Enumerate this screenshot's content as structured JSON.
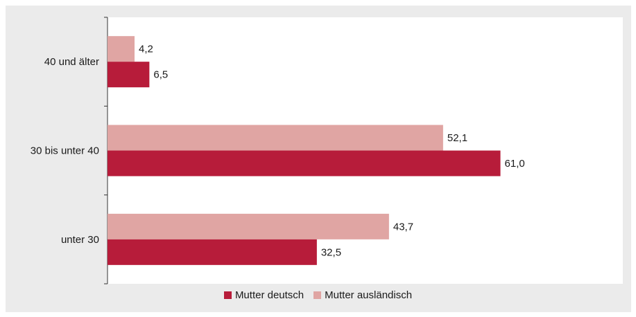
{
  "chart_data": {
    "type": "bar",
    "orientation": "horizontal",
    "categories": [
      "40 und älter",
      "30 bis unter 40",
      "unter 30"
    ],
    "series": [
      {
        "name": "Mutter ausländisch",
        "values": [
          4.2,
          52.1,
          43.7
        ],
        "color": "#e0a5a3"
      },
      {
        "name": "Mutter deutsch",
        "values": [
          6.5,
          61.0,
          32.5
        ],
        "color": "#b71c3a"
      }
    ],
    "value_labels": {
      "Mutter ausländisch": [
        "4,2",
        "52,1",
        "43,7"
      ],
      "Mutter deutsch": [
        "6,5",
        "61,0",
        "32,5"
      ]
    },
    "xlim": [
      0,
      80
    ],
    "grid": false,
    "legend_position": "bottom-center",
    "legend_order": [
      "Mutter deutsch",
      "Mutter ausländisch"
    ],
    "background": "#ebebeb",
    "plot_background": "#ffffff"
  }
}
